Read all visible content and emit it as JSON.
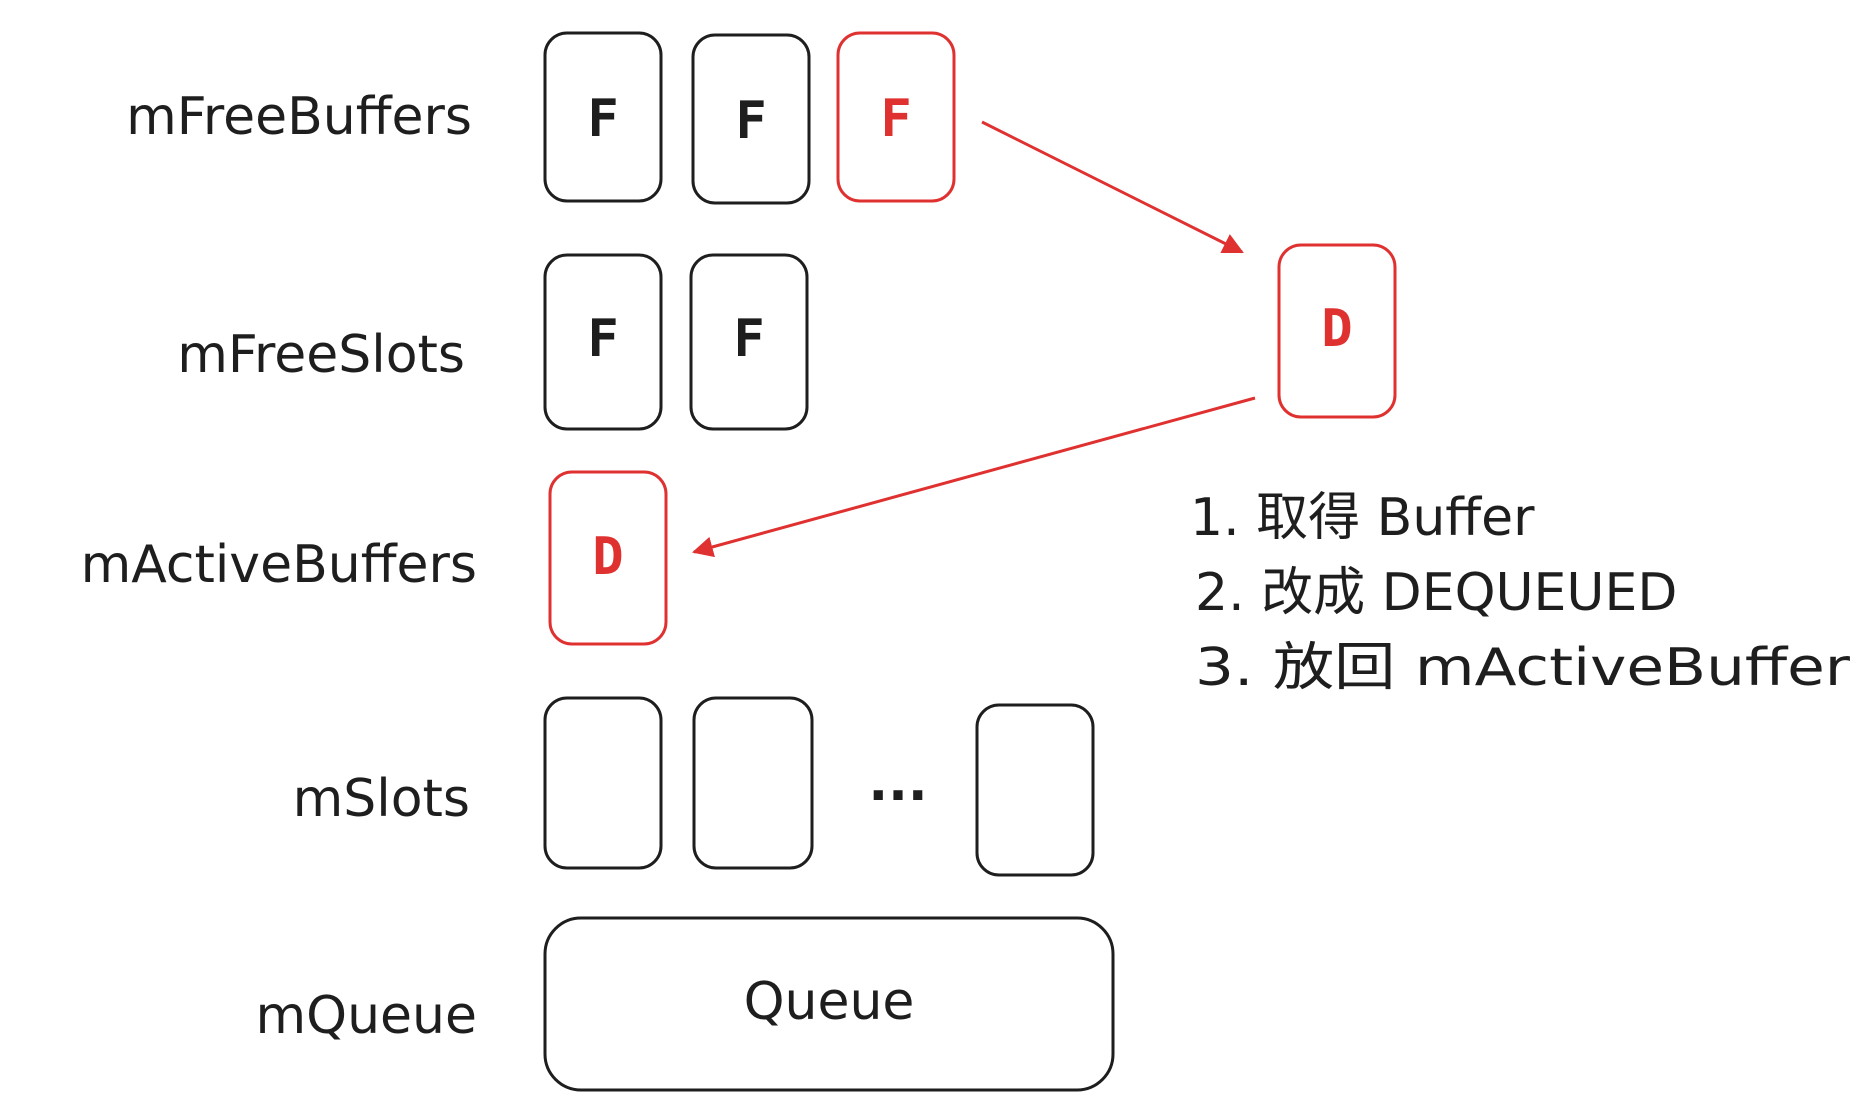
{
  "colors": {
    "ink": "#1e1e1e",
    "highlight": "#e03131"
  },
  "labels": {
    "free_buffers": "mFreeBuffers",
    "free_slots": "mFreeSlots",
    "active_buffers": "mActiveBuffers",
    "slots": "mSlots",
    "queue": "mQueue"
  },
  "free_buffers": [
    "F",
    "F",
    "F"
  ],
  "free_slots": [
    "F",
    "F"
  ],
  "active_buffers": [
    "D"
  ],
  "dequeued_buffer": "D",
  "slots_ellipsis": "...",
  "queue_label": "Queue",
  "steps": [
    "1.  取得  Buffer",
    "2.  改成  DEQUEUED",
    "3.  放回  mActiveBuffer"
  ]
}
